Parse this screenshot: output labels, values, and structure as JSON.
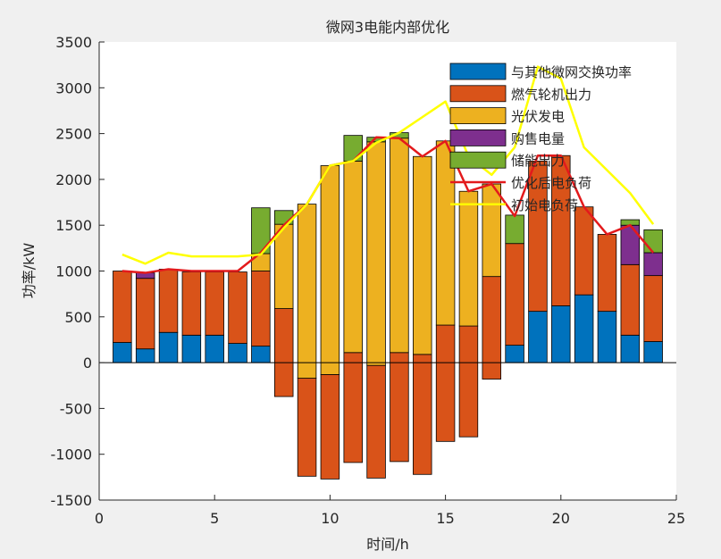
{
  "chart_data": {
    "type": "bar",
    "stacked": true,
    "title": "微网3电能内部优化",
    "xlabel": "时间/h",
    "ylabel": "功率/kW",
    "xlim": [
      0,
      25
    ],
    "ylim": [
      -1500,
      3500
    ],
    "xticks": [
      0,
      5,
      10,
      15,
      20,
      25
    ],
    "xtick_labels": [
      "0",
      "5",
      "10",
      "15",
      "20",
      "25"
    ],
    "yticks": [
      -1500,
      -1000,
      -500,
      0,
      500,
      1000,
      1500,
      2000,
      2500,
      3000,
      3500
    ],
    "ytick_labels": [
      "-1500",
      "-1000",
      "-500",
      "0",
      "500",
      "1000",
      "1500",
      "2000",
      "2500",
      "3000",
      "3500"
    ],
    "legend_position": "top-right",
    "hours": [
      1,
      2,
      3,
      4,
      5,
      6,
      7,
      8,
      9,
      10,
      11,
      12,
      13,
      14,
      15,
      16,
      17,
      18,
      19,
      20,
      21,
      22,
      23,
      24
    ],
    "bar_segments": [
      [
        {
          "s": 0,
          "from": 0,
          "to": 220
        },
        {
          "s": 1,
          "from": 220,
          "to": 1000
        }
      ],
      [
        {
          "s": 0,
          "from": 0,
          "to": 150
        },
        {
          "s": 1,
          "from": 150,
          "to": 920
        },
        {
          "s": 3,
          "from": 920,
          "to": 980
        }
      ],
      [
        {
          "s": 0,
          "from": 0,
          "to": 330
        },
        {
          "s": 1,
          "from": 330,
          "to": 1020
        }
      ],
      [
        {
          "s": 0,
          "from": 0,
          "to": 300
        },
        {
          "s": 1,
          "from": 300,
          "to": 990
        }
      ],
      [
        {
          "s": 0,
          "from": 0,
          "to": 300
        },
        {
          "s": 1,
          "from": 300,
          "to": 990
        }
      ],
      [
        {
          "s": 0,
          "from": 0,
          "to": 210
        },
        {
          "s": 1,
          "from": 210,
          "to": 990
        }
      ],
      [
        {
          "s": 0,
          "from": 0,
          "to": 180
        },
        {
          "s": 1,
          "from": 180,
          "to": 1000
        },
        {
          "s": 2,
          "from": 1000,
          "to": 1190
        },
        {
          "s": 4,
          "from": 1190,
          "to": 1690
        }
      ],
      [
        {
          "s": 1,
          "from": -370,
          "to": 590
        },
        {
          "s": 2,
          "from": 590,
          "to": 1510
        },
        {
          "s": 4,
          "from": 1510,
          "to": 1660
        }
      ],
      [
        {
          "s": 1,
          "from": -1240,
          "to": -170
        },
        {
          "s": 2,
          "from": -170,
          "to": 1730
        }
      ],
      [
        {
          "s": 1,
          "from": -1270,
          "to": -130
        },
        {
          "s": 2,
          "from": -130,
          "to": 2150
        }
      ],
      [
        {
          "s": 1,
          "from": -1090,
          "to": 110
        },
        {
          "s": 2,
          "from": 110,
          "to": 2200
        },
        {
          "s": 4,
          "from": 2200,
          "to": 2480
        }
      ],
      [
        {
          "s": 1,
          "from": -1260,
          "to": -30
        },
        {
          "s": 2,
          "from": -30,
          "to": 2410
        },
        {
          "s": 4,
          "from": 2410,
          "to": 2460
        }
      ],
      [
        {
          "s": 1,
          "from": -1080,
          "to": 110
        },
        {
          "s": 2,
          "from": 110,
          "to": 2450
        },
        {
          "s": 4,
          "from": 2450,
          "to": 2510
        }
      ],
      [
        {
          "s": 1,
          "from": -1220,
          "to": 90
        },
        {
          "s": 2,
          "from": 90,
          "to": 2250
        }
      ],
      [
        {
          "s": 1,
          "from": -860,
          "to": 410
        },
        {
          "s": 2,
          "from": 410,
          "to": 2420
        }
      ],
      [
        {
          "s": 1,
          "from": -810,
          "to": 400
        },
        {
          "s": 2,
          "from": 400,
          "to": 1870
        }
      ],
      [
        {
          "s": 1,
          "from": -180,
          "to": 940
        },
        {
          "s": 2,
          "from": 940,
          "to": 1950
        }
      ],
      [
        {
          "s": 0,
          "from": 0,
          "to": 190
        },
        {
          "s": 1,
          "from": 190,
          "to": 1300
        },
        {
          "s": 4,
          "from": 1300,
          "to": 1610
        }
      ],
      [
        {
          "s": 0,
          "from": 0,
          "to": 560
        },
        {
          "s": 1,
          "from": 560,
          "to": 2200
        }
      ],
      [
        {
          "s": 0,
          "from": 0,
          "to": 620
        },
        {
          "s": 1,
          "from": 620,
          "to": 2260
        }
      ],
      [
        {
          "s": 0,
          "from": 0,
          "to": 740
        },
        {
          "s": 1,
          "from": 740,
          "to": 1700
        }
      ],
      [
        {
          "s": 0,
          "from": 0,
          "to": 560
        },
        {
          "s": 1,
          "from": 560,
          "to": 1400
        }
      ],
      [
        {
          "s": 0,
          "from": 0,
          "to": 300
        },
        {
          "s": 1,
          "from": 300,
          "to": 1070
        },
        {
          "s": 3,
          "from": 1070,
          "to": 1500
        },
        {
          "s": 4,
          "from": 1500,
          "to": 1560
        }
      ],
      [
        {
          "s": 0,
          "from": 0,
          "to": 230
        },
        {
          "s": 1,
          "from": 230,
          "to": 950
        },
        {
          "s": 3,
          "from": 950,
          "to": 1200
        },
        {
          "s": 4,
          "from": 1200,
          "to": 1450
        }
      ]
    ],
    "series": [
      {
        "name": "与其他微网交换功率",
        "color": "#0072BD"
      },
      {
        "name": "燃气轮机出力",
        "color": "#D95319"
      },
      {
        "name": "光伏发电",
        "color": "#EDB120"
      },
      {
        "name": "购售电量",
        "color": "#7E2F8E"
      },
      {
        "name": "储能出力",
        "color": "#77AC30"
      }
    ],
    "lines": [
      {
        "name": "优化后电负荷",
        "color": "#E31A1C",
        "x": [
          1,
          2,
          3,
          4,
          5,
          6,
          7,
          8,
          9,
          10,
          11,
          12,
          13,
          14,
          15,
          16,
          17,
          18,
          19,
          20,
          21,
          22,
          23,
          24
        ],
        "values": [
          1000,
          980,
          1020,
          1000,
          1000,
          1000,
          1200,
          1500,
          1730,
          2150,
          2200,
          2460,
          2450,
          2250,
          2420,
          1870,
          1950,
          1600,
          2260,
          2260,
          1700,
          1400,
          1500,
          1200
        ]
      },
      {
        "name": "初始电负荷",
        "color": "#FFFF00",
        "x": [
          1,
          2,
          3,
          4,
          5,
          6,
          7,
          8,
          9,
          10,
          11,
          12,
          13,
          14,
          15,
          16,
          17,
          18,
          19,
          20,
          21,
          22,
          23,
          24
        ],
        "values": [
          1180,
          1080,
          1200,
          1160,
          1160,
          1160,
          1180,
          1470,
          1730,
          2150,
          2200,
          2400,
          2510,
          2680,
          2850,
          2250,
          2050,
          2350,
          3230,
          3100,
          2350,
          2100,
          1850,
          1510
        ]
      }
    ]
  }
}
